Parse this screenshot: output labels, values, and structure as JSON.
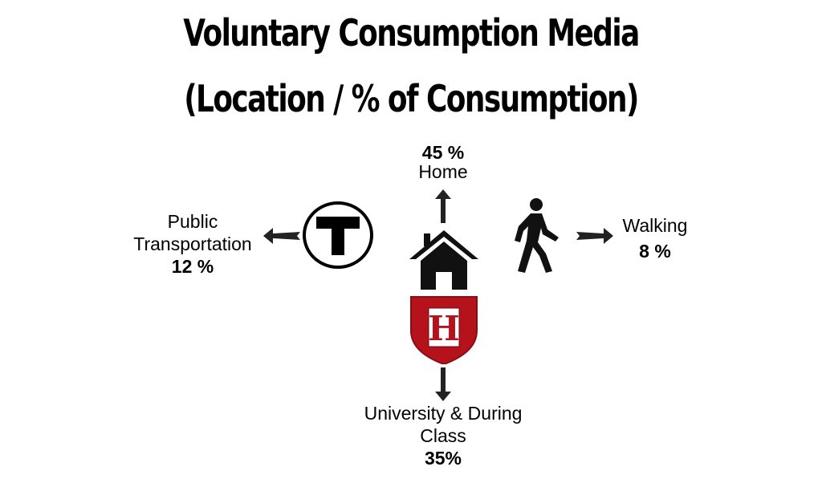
{
  "title": {
    "line1": "Voluntary Consumption Media",
    "line2": "(Location / % of Consumption)"
  },
  "locations": {
    "home": {
      "percent": "45 %",
      "label": "Home"
    },
    "public_transportation": {
      "label_line1": "Public",
      "label_line2": "Transportation",
      "percent": "12 %"
    },
    "walking": {
      "label": "Walking",
      "percent": "8 %"
    },
    "university": {
      "label_line1": "University & During",
      "label_line2": "Class",
      "percent": "35%"
    }
  },
  "icons": {
    "transit": "transit-t-icon",
    "home": "house-icon",
    "walking": "walking-person-icon",
    "university": "harvard-shield-icon",
    "shield_letter": "H"
  },
  "colors": {
    "shield_red": "#b5121b",
    "ink": "#222222"
  }
}
